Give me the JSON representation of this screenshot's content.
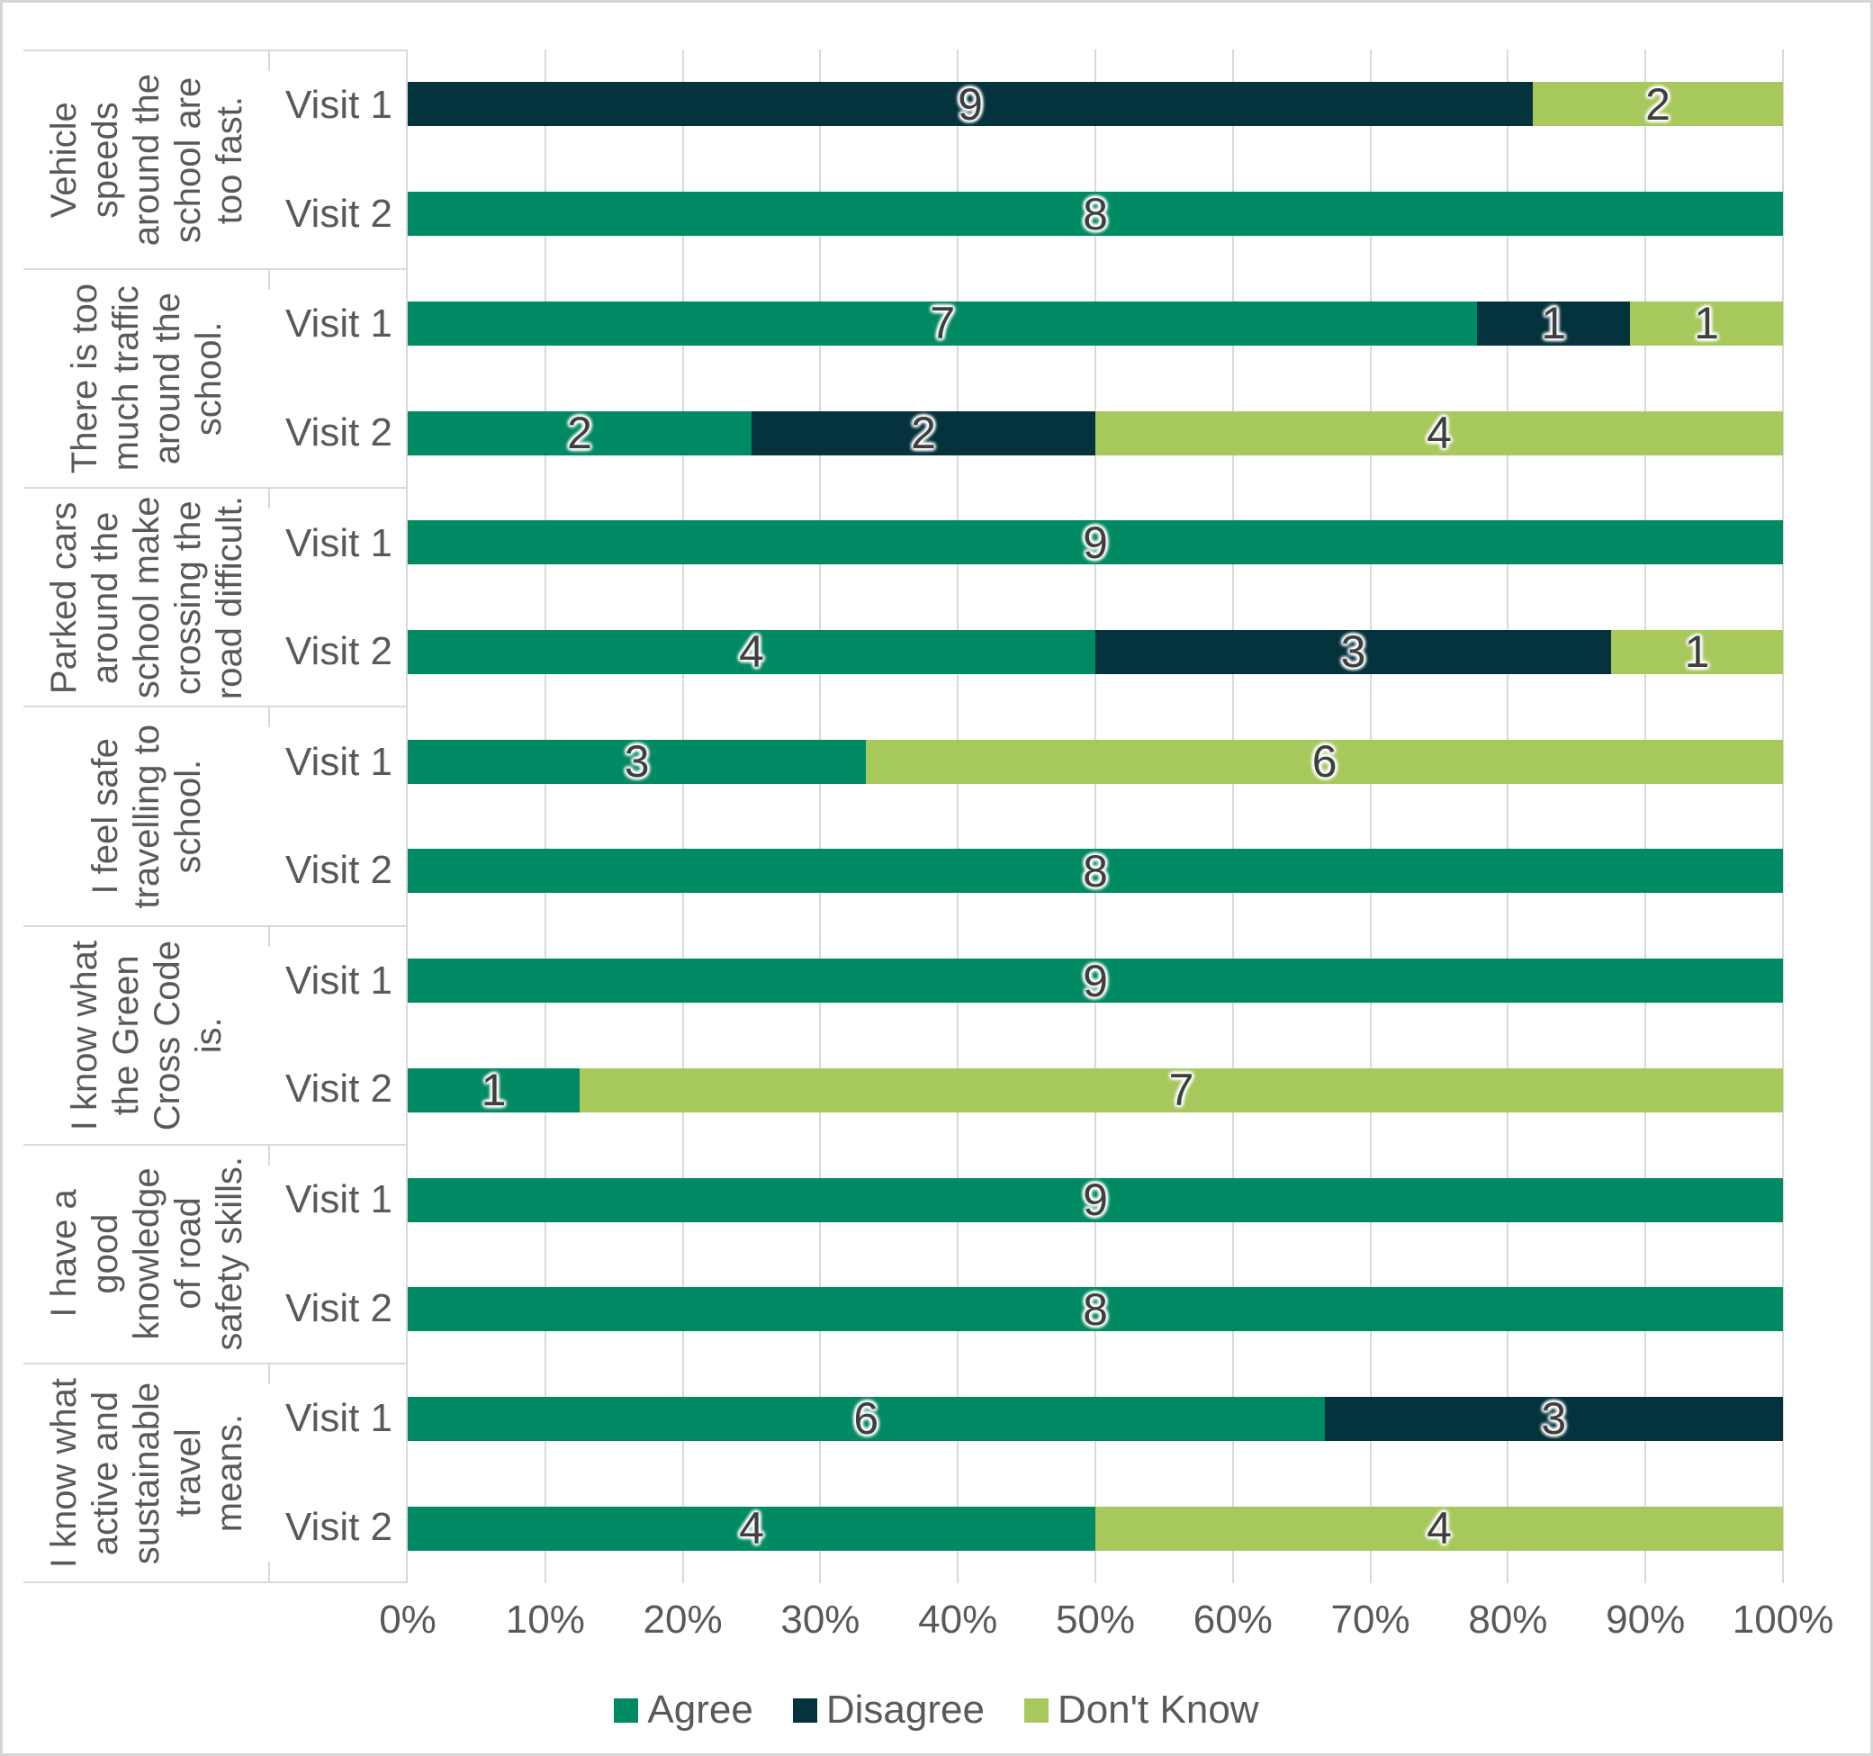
{
  "chart_data": {
    "type": "bar",
    "subtype": "100%-stacked-horizontal",
    "title": "",
    "xlabel": "",
    "ylabel": "",
    "grid": "vertical",
    "axis_range": [
      "0%",
      "100%"
    ],
    "x_ticks": [
      "0%",
      "10%",
      "20%",
      "30%",
      "40%",
      "50%",
      "60%",
      "70%",
      "80%",
      "90%",
      "100%"
    ],
    "series_names": [
      "Agree",
      "Disagree",
      "Don't Know"
    ],
    "series_colors": [
      "#008a63",
      "#04333e",
      "#a7c95c"
    ],
    "legend_position": "bottom",
    "groups": [
      {
        "question": "Vehicle\nspeeds\naround the\nschool are\ntoo fast.",
        "bars": [
          {
            "visit": "Visit 1",
            "values": [
              0,
              9,
              2
            ]
          },
          {
            "visit": "Visit 2",
            "values": [
              8,
              0,
              0
            ]
          }
        ]
      },
      {
        "question": "There is too\nmuch traffic\naround the\nschool.",
        "bars": [
          {
            "visit": "Visit 1",
            "values": [
              7,
              1,
              1
            ]
          },
          {
            "visit": "Visit 2",
            "values": [
              2,
              2,
              4
            ]
          }
        ]
      },
      {
        "question": "Parked cars\naround the\nschool make\ncrossing the\nroad difficult.",
        "bars": [
          {
            "visit": "Visit 1",
            "values": [
              9,
              0,
              0
            ]
          },
          {
            "visit": "Visit 2",
            "values": [
              4,
              3,
              1
            ]
          }
        ]
      },
      {
        "question": "I feel safe\ntravelling to\nschool.",
        "bars": [
          {
            "visit": "Visit 1",
            "values": [
              3,
              0,
              6
            ]
          },
          {
            "visit": "Visit 2",
            "values": [
              8,
              0,
              0
            ]
          }
        ]
      },
      {
        "question": "I know what\nthe Green\nCross Code\nis.",
        "bars": [
          {
            "visit": "Visit 1",
            "values": [
              9,
              0,
              0
            ]
          },
          {
            "visit": "Visit 2",
            "values": [
              1,
              0,
              7
            ]
          }
        ]
      },
      {
        "question": "I have a\ngood\nknowledge\nof road\nsafety skills.",
        "bars": [
          {
            "visit": "Visit 1",
            "values": [
              9,
              0,
              0
            ]
          },
          {
            "visit": "Visit 2",
            "values": [
              8,
              0,
              0
            ]
          }
        ]
      },
      {
        "question": "I know what\nactive and\nsustainable\ntravel\nmeans.",
        "bars": [
          {
            "visit": "Visit 1",
            "values": [
              6,
              3,
              0
            ]
          },
          {
            "visit": "Visit 2",
            "values": [
              4,
              0,
              4
            ]
          }
        ]
      }
    ],
    "colors": {
      "gridline": "#d9d9d9",
      "axis_text": "#595959",
      "data_label_text": "#3f3f3f"
    }
  }
}
